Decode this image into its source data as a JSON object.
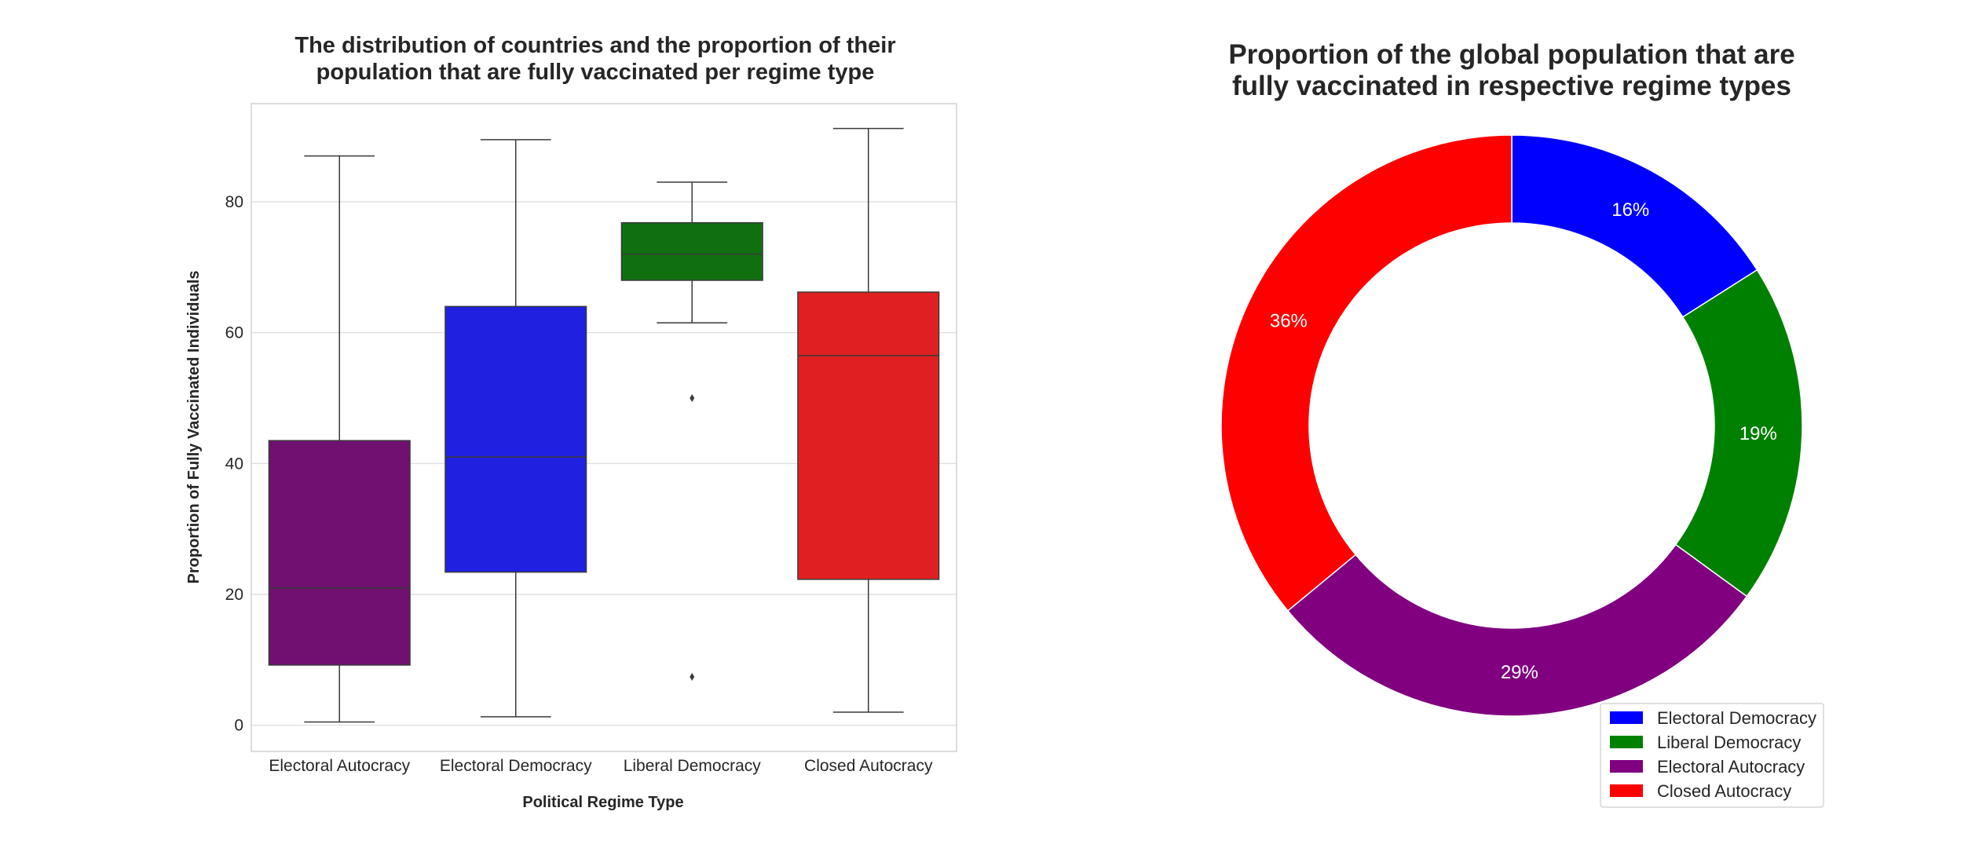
{
  "chart_data": [
    {
      "type": "box",
      "title": [
        "The distribution of countries and the proportion of their",
        "population that are fully vaccinated per regime type"
      ],
      "xlabel": "Political Regime Type",
      "ylabel": "Proportion of Fully Vaccinated Individuals",
      "ylim": [
        -4,
        95
      ],
      "yticks": [
        0,
        20,
        40,
        60,
        80
      ],
      "grid": true,
      "categories": [
        "Electoral Autocracy",
        "Electoral Democracy",
        "Liberal Democracy",
        "Closed Autocracy"
      ],
      "colors": [
        "#701070",
        "#2020e0",
        "#107010",
        "#e02020"
      ],
      "boxes": [
        {
          "min": 0.5,
          "q1": 9.2,
          "median": 21.0,
          "q3": 43.5,
          "max": 87.0,
          "outliers": []
        },
        {
          "min": 1.3,
          "q1": 23.4,
          "median": 41.0,
          "q3": 64.0,
          "max": 89.5,
          "outliers": []
        },
        {
          "min": 61.5,
          "q1": 68.0,
          "median": 72.0,
          "q3": 76.8,
          "max": 83.0,
          "outliers": [
            50.0,
            7.4
          ]
        },
        {
          "min": 2.0,
          "q1": 22.3,
          "median": 56.5,
          "q3": 66.2,
          "max": 91.2,
          "outliers": []
        }
      ]
    },
    {
      "type": "pie",
      "donut": true,
      "title": [
        "Proportion of the global population that are",
        "fully vaccinated in respective regime types"
      ],
      "labels": [
        "Electoral Democracy",
        "Liberal Democracy",
        "Electoral Autocracy",
        "Closed Autocracy"
      ],
      "values": [
        16,
        19,
        29,
        36
      ],
      "value_labels": [
        "16%",
        "19%",
        "29%",
        "36%"
      ],
      "colors": [
        "#0000ff",
        "#008000",
        "#800080",
        "#ff0000"
      ],
      "legend_position": "lower-right"
    }
  ]
}
